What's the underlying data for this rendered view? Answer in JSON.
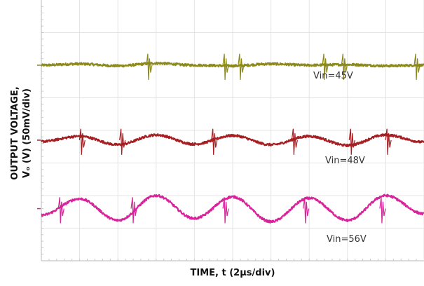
{
  "chart_data": {
    "type": "line",
    "title": "",
    "xlabel": "TIME, t (2µs/div)",
    "ylabel_line1": "OUTPUT VOLTAGE,",
    "ylabel_line2": "Vₒ (V) (50mV/div)",
    "x_divisions": 10,
    "y_divisions": 8,
    "grid": true,
    "x": [
      0,
      1,
      2,
      3,
      4,
      5,
      6,
      7,
      8,
      9,
      10
    ],
    "series": [
      {
        "label": "Vin=45V",
        "color": "#8c8a1a",
        "baseline_div": 6.0,
        "ripple_mVpp": 20,
        "spikes_us": [
          5.6,
          9.6,
          10.4,
          14.8,
          15.8,
          19.6
        ],
        "values_mV": [
          0,
          2,
          -1,
          3,
          0,
          -1,
          2,
          0,
          1,
          -1,
          0
        ]
      },
      {
        "label": "Vin=48V",
        "color": "#a51f23",
        "baseline_div": 3.7,
        "ripple_mVpp": 25,
        "spikes_us": [
          2.1,
          4.2,
          9.0,
          13.2,
          16.2,
          18.1
        ],
        "values_mV": [
          -2,
          6,
          -7,
          8,
          -6,
          7,
          -7,
          6,
          -8,
          8,
          -3
        ]
      },
      {
        "label": "Vin=56V",
        "color": "#d8239a",
        "baseline_div": 1.6,
        "ripple_mVpp": 45,
        "spikes_us": [
          1.0,
          4.8,
          9.6,
          13.8,
          17.8
        ],
        "values_mV": [
          -10,
          15,
          -18,
          20,
          -15,
          18,
          -20,
          16,
          -18,
          20,
          -8
        ]
      }
    ],
    "annotations": [
      "Vin=45V",
      "Vin=48V",
      "Vin=56V"
    ]
  }
}
